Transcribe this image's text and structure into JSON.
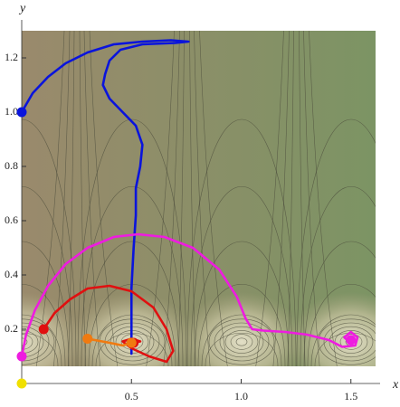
{
  "chart_data": {
    "type": "line",
    "x_label": "x",
    "y_label": "y",
    "xlim": [
      0,
      1.6
    ],
    "ylim": [
      0,
      1.3
    ],
    "xticks": [
      0.5,
      {
        "value": 1,
        "label": "1.0"
      },
      1.5
    ],
    "yticks": [
      0.2,
      0.4,
      0.6,
      0.8,
      {
        "value": 1,
        "label": "1.0"
      },
      1.2
    ],
    "series": [
      {
        "color": "#0a14dc",
        "end_marker": false,
        "x": [
          0,
          0.05,
          0.12,
          0.2,
          0.3,
          0.42,
          0.55,
          0.68,
          0.76,
          0.7,
          0.55,
          0.45,
          0.4,
          0.38,
          0.37,
          0.4,
          0.46,
          0.52,
          0.55,
          0.54,
          0.52,
          0.52,
          0.51,
          0.5,
          0.5,
          0.5
        ],
        "y": [
          1.0,
          1.07,
          1.13,
          1.18,
          1.22,
          1.25,
          1.26,
          1.265,
          1.26,
          1.255,
          1.25,
          1.23,
          1.19,
          1.14,
          1.1,
          1.05,
          1.0,
          0.95,
          0.88,
          0.8,
          0.72,
          0.62,
          0.5,
          0.35,
          0.2,
          0.11
        ]
      },
      {
        "color": "#ee1ce0",
        "end_marker": true,
        "x": [
          0,
          0.02,
          0.06,
          0.12,
          0.2,
          0.3,
          0.42,
          0.53,
          0.65,
          0.78,
          0.9,
          0.98,
          1.02,
          1.05,
          1.1,
          1.2,
          1.3,
          1.4,
          1.46,
          1.52,
          1.53,
          1.5,
          1.47,
          1.49,
          1.5
        ],
        "y": [
          0.1,
          0.18,
          0.27,
          0.36,
          0.44,
          0.5,
          0.54,
          0.55,
          0.54,
          0.5,
          0.42,
          0.32,
          0.24,
          0.2,
          0.195,
          0.19,
          0.18,
          0.16,
          0.135,
          0.14,
          0.17,
          0.19,
          0.17,
          0.155,
          0.16
        ]
      },
      {
        "color": "#e01010",
        "end_marker": true,
        "x": [
          0.1,
          0.15,
          0.22,
          0.3,
          0.4,
          0.5,
          0.6,
          0.66,
          0.69,
          0.66,
          0.58,
          0.5,
          0.46,
          0.5,
          0.54,
          0.51
        ],
        "y": [
          0.2,
          0.26,
          0.31,
          0.35,
          0.36,
          0.34,
          0.28,
          0.2,
          0.12,
          0.08,
          0.1,
          0.13,
          0.155,
          0.165,
          0.155,
          0.15
        ]
      },
      {
        "color": "#f07a10",
        "end_marker": true,
        "x": [
          0.3,
          0.4,
          0.46,
          0.5
        ],
        "y": [
          0.165,
          0.15,
          0.14,
          0.15
        ]
      },
      {
        "color": "#f0e000",
        "end_marker": false,
        "x": [
          0
        ],
        "y": [
          0
        ]
      }
    ]
  }
}
